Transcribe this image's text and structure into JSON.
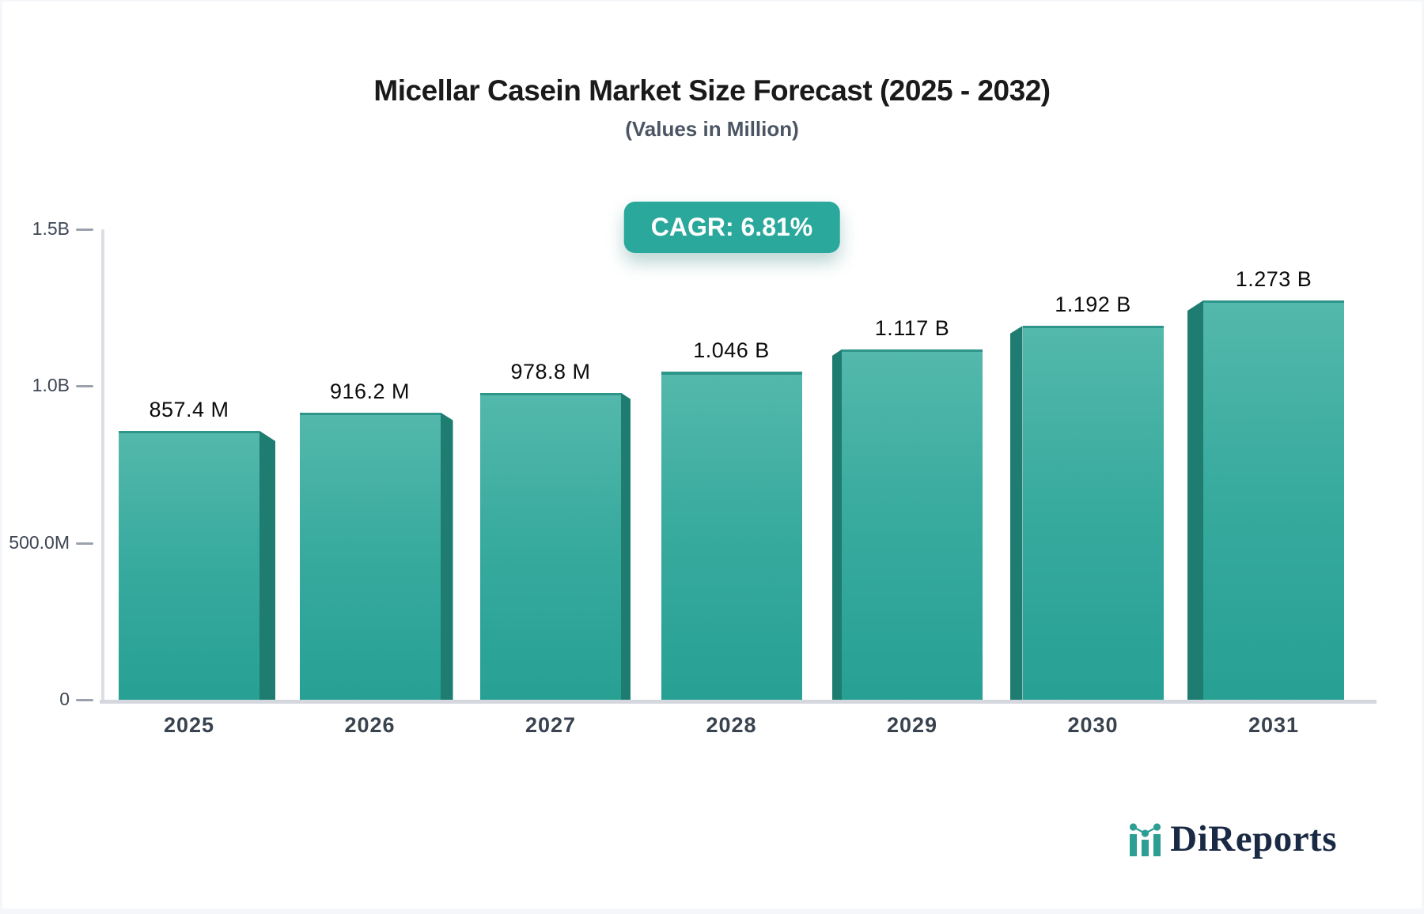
{
  "header": {
    "title": "Micellar Casein Market Size Forecast (2025 - 2032)",
    "subtitle": "(Values in Million)",
    "cagr_badge": "CAGR: 6.81%"
  },
  "chart_data": {
    "type": "bar",
    "title": "Micellar Casein Market Size Forecast (2025 - 2032)",
    "subtitle": "(Values in Million)",
    "categories": [
      "2025",
      "2026",
      "2027",
      "2028",
      "2029",
      "2030",
      "2031"
    ],
    "values_millions": [
      857.4,
      916.2,
      978.8,
      1046,
      1117,
      1192,
      1273
    ],
    "bar_labels": [
      "857.4 M",
      "916.2 M",
      "978.8 M",
      "1.046 B",
      "1.117 B",
      "1.192 B",
      "1.273 B"
    ],
    "y_ticks": [
      {
        "label": "1.5B",
        "value": 1500
      },
      {
        "label": "1.0B",
        "value": 1000
      },
      {
        "label": "500.0M",
        "value": 500
      },
      {
        "label": "0",
        "value": 0
      }
    ],
    "ylim": [
      0,
      1500
    ],
    "grid": false,
    "legend": "none",
    "annotations": [
      "CAGR: 6.81%"
    ]
  },
  "colors": {
    "bar_top": "#54b8ac",
    "bar_bottom": "#27a094",
    "bar_side": "#1e7c70",
    "badge_bg": "#2ba89c",
    "badge_text": "#ffffff",
    "axis_line": "#d5d7de",
    "logo_teal": "#2d9e94",
    "logo_navy": "#1b2a44"
  },
  "logo": {
    "text": "DiReports",
    "icon": "bar-chart-trend-icon"
  }
}
